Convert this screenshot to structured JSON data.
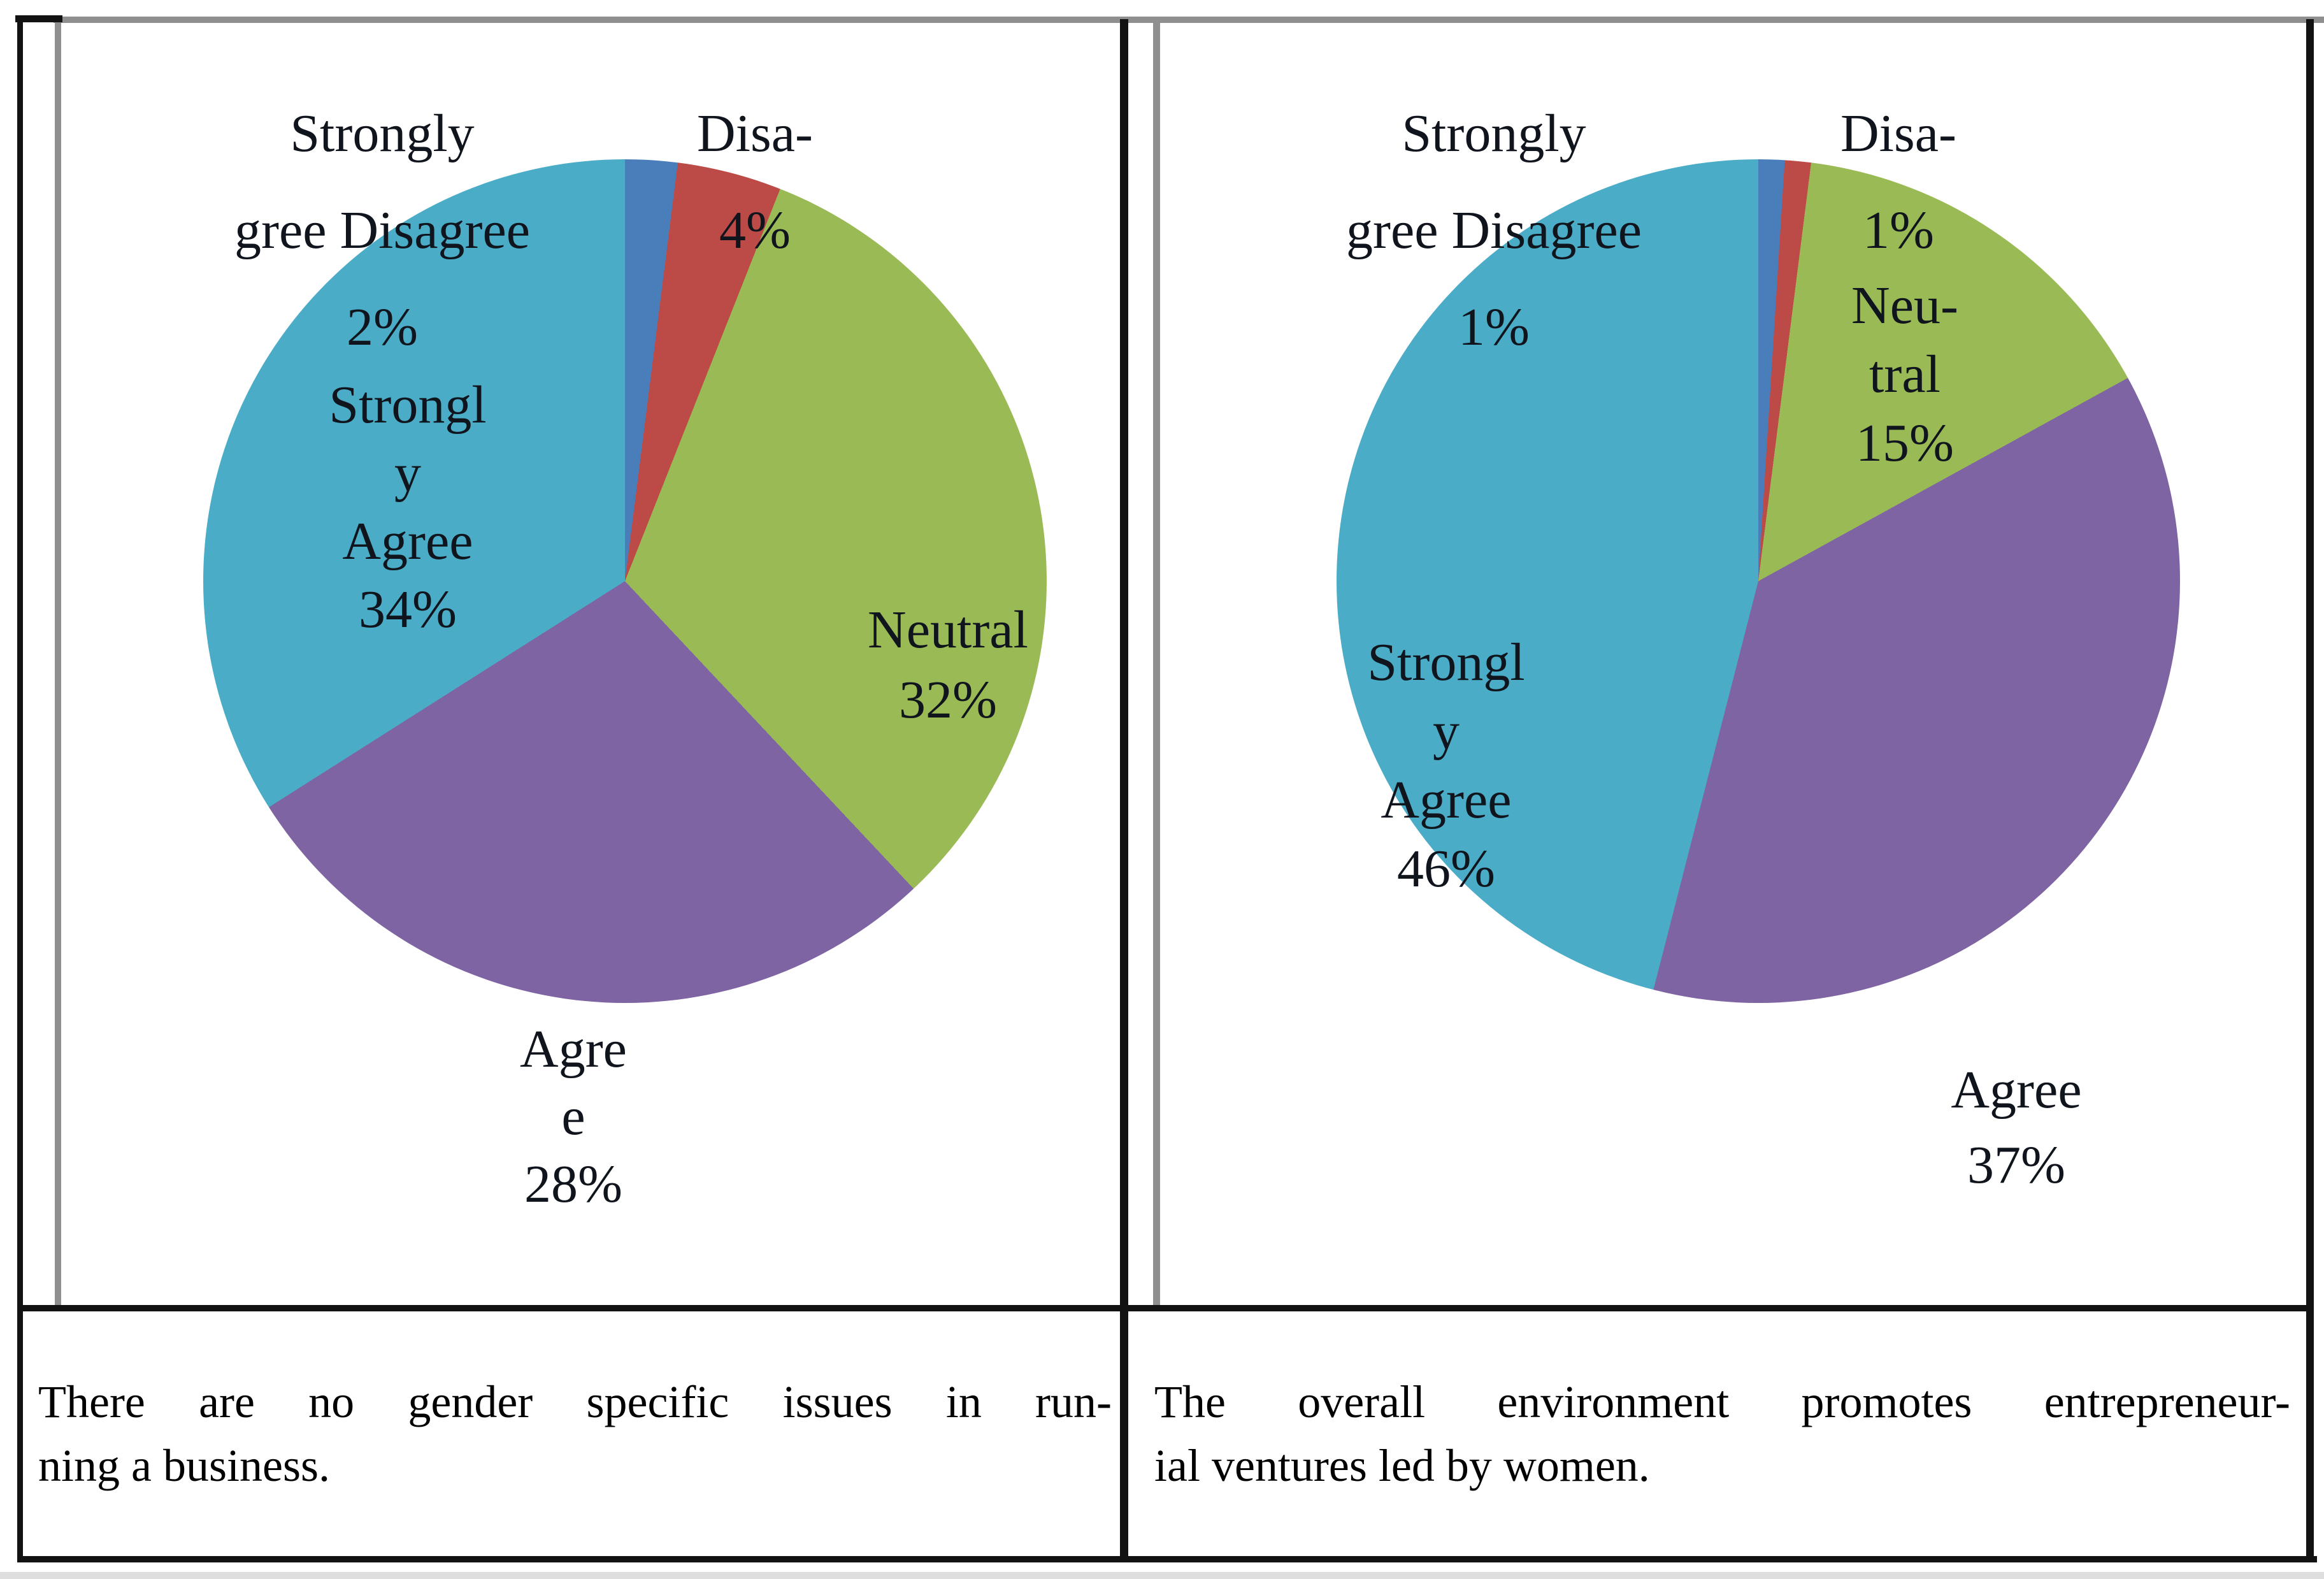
{
  "figure": {
    "kind": "two-pie-survey-figure",
    "rows": [
      "charts",
      "question-captions"
    ]
  },
  "colors": {
    "teal_strongly_agree": "#4AACC6",
    "purple_agree": "#7E64A2",
    "green_neutral": "#9ABA56",
    "red_disagree": "#BC4B48",
    "blue_strongly_disagree": "#4A7EBB",
    "grid_gray": "#8F8F8F",
    "border_black": "#121212",
    "pie_label_text": "#10151D",
    "caption_text": "#000000",
    "page_edge_strip": "#DEDEDE"
  },
  "chart_data": [
    {
      "type": "pie",
      "question": "There are no gender specific issues in running a business.",
      "caption_lines": [
        "There are no gender specific issues in run-",
        "ning a business."
      ],
      "categories": [
        "Strongly Disagree",
        "Disagree",
        "Neutral",
        "Agree",
        "Strongly Agree"
      ],
      "values": [
        2,
        4,
        32,
        28,
        34
      ],
      "unit": "%",
      "slice_colors": [
        "#4A7EBB",
        "#BC4B48",
        "#9ABA56",
        "#7E64A2",
        "#4AACC6"
      ],
      "start_angle_deg": 0,
      "direction": "clockwise",
      "legend": "none",
      "data_labels": [
        {
          "id": "strongly-disagree",
          "lines": [
            "Strongly",
            "gree Disagree",
            "2%"
          ]
        },
        {
          "id": "disagree",
          "lines": [
            "Disa-",
            "4%"
          ]
        },
        {
          "id": "strongly-agree",
          "lines": [
            "Strongl",
            "y",
            "Agree",
            "34%"
          ]
        },
        {
          "id": "neutral",
          "lines": [
            "Neutral",
            "32%"
          ]
        },
        {
          "id": "agree",
          "lines": [
            "Agre",
            "e",
            "28%"
          ]
        }
      ]
    },
    {
      "type": "pie",
      "question": "The overall environment promotes entrepreneurial ventures led by women.",
      "caption_lines": [
        "The overall environment promotes entrepreneur-",
        "ial ventures led by women."
      ],
      "categories": [
        "Strongly Disagree",
        "Disagree",
        "Neutral",
        "Agree",
        "Strongly Agree"
      ],
      "values": [
        1,
        1,
        15,
        37,
        46
      ],
      "unit": "%",
      "slice_colors": [
        "#4A7EBB",
        "#BC4B48",
        "#9ABA56",
        "#7E64A2",
        "#4AACC6"
      ],
      "start_angle_deg": 0,
      "direction": "clockwise",
      "legend": "none",
      "data_labels": [
        {
          "id": "strongly-disagree",
          "lines": [
            "Strongly",
            "gree Disagree",
            "1%"
          ]
        },
        {
          "id": "disagree",
          "lines": [
            "Disa-",
            "1%"
          ]
        },
        {
          "id": "neutral",
          "lines": [
            "Neu-",
            "tral",
            "15%"
          ]
        },
        {
          "id": "strongly-agree",
          "lines": [
            "Strongl",
            "y",
            "Agree",
            "46%"
          ]
        },
        {
          "id": "agree",
          "lines": [
            "Agree",
            "37%"
          ]
        }
      ]
    }
  ]
}
